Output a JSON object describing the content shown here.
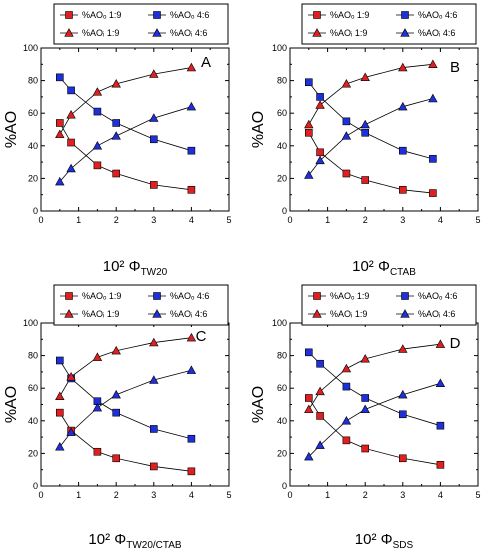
{
  "figure": {
    "ylabel": "%AO",
    "colors": {
      "red": "#e02020",
      "blue": "#1f2fd9",
      "line": "#000000"
    }
  },
  "chart_data": [
    {
      "type": "line",
      "letter": "A",
      "xlabel_main": "10² Φ",
      "xlabel_sub": "TW20",
      "ylabel": "%AO",
      "xlim": [
        0,
        5
      ],
      "ylim": [
        0,
        100
      ],
      "xticks": [
        "0",
        "1",
        "2",
        "3",
        "4",
        "5"
      ],
      "yticks": [
        "0",
        "20",
        "40",
        "60",
        "80",
        "100"
      ],
      "legend": [
        {
          "label": "%AOₒ 1:9",
          "marker": "square",
          "color": "#e02020"
        },
        {
          "label": "%AOₒ 4:6",
          "marker": "square",
          "color": "#1f2fd9"
        },
        {
          "label": "%AOᵢ 1:9",
          "marker": "triangle",
          "color": "#e02020"
        },
        {
          "label": "%AOᵢ 4:6",
          "marker": "triangle",
          "color": "#1f2fd9"
        }
      ],
      "series": [
        {
          "name": "%AOₒ 1:9",
          "marker": "square",
          "color": "#e02020",
          "x": [
            0.5,
            0.8,
            1.5,
            2.0,
            3.0,
            4.0
          ],
          "y": [
            54,
            42,
            28,
            23,
            16,
            13
          ]
        },
        {
          "name": "%AOₒ 4:6",
          "marker": "square",
          "color": "#1f2fd9",
          "x": [
            0.5,
            0.8,
            1.5,
            2.0,
            3.0,
            4.0
          ],
          "y": [
            82,
            74,
            61,
            54,
            44,
            37
          ]
        },
        {
          "name": "%AOᵢ 1:9",
          "marker": "triangle",
          "color": "#e02020",
          "x": [
            0.5,
            0.8,
            1.5,
            2.0,
            3.0,
            4.0
          ],
          "y": [
            47,
            59,
            73,
            78,
            84,
            88
          ]
        },
        {
          "name": "%AOᵢ 4:6",
          "marker": "triangle",
          "color": "#1f2fd9",
          "x": [
            0.5,
            0.8,
            1.5,
            2.0,
            3.0,
            4.0
          ],
          "y": [
            18,
            26,
            40,
            46,
            57,
            64
          ]
        }
      ]
    },
    {
      "type": "line",
      "letter": "B",
      "xlabel_main": "10² Φ",
      "xlabel_sub": "CTAB",
      "ylabel": "%AO",
      "xlim": [
        0,
        5
      ],
      "ylim": [
        0,
        100
      ],
      "xticks": [
        "0",
        "1",
        "2",
        "3",
        "4",
        "5"
      ],
      "yticks": [
        "0",
        "20",
        "40",
        "60",
        "80",
        "100"
      ],
      "legend": [
        {
          "label": "%AOₒ 1:9",
          "marker": "square",
          "color": "#e02020"
        },
        {
          "label": "%AOₒ 4:6",
          "marker": "square",
          "color": "#1f2fd9"
        },
        {
          "label": "%AOᵢ 1:9",
          "marker": "triangle",
          "color": "#e02020"
        },
        {
          "label": "%AOᵢ 4:6",
          "marker": "triangle",
          "color": "#1f2fd9"
        }
      ],
      "series": [
        {
          "name": "%AOₒ 1:9",
          "marker": "square",
          "color": "#e02020",
          "x": [
            0.5,
            0.8,
            1.5,
            2.0,
            3.0,
            3.8
          ],
          "y": [
            48,
            36,
            23,
            19,
            13,
            11
          ]
        },
        {
          "name": "%AOₒ 4:6",
          "marker": "square",
          "color": "#1f2fd9",
          "x": [
            0.5,
            0.8,
            1.5,
            2.0,
            3.0,
            3.8
          ],
          "y": [
            79,
            70,
            55,
            48,
            37,
            32
          ]
        },
        {
          "name": "%AOᵢ 1:9",
          "marker": "triangle",
          "color": "#e02020",
          "x": [
            0.5,
            0.8,
            1.5,
            2.0,
            3.0,
            3.8
          ],
          "y": [
            53,
            65,
            78,
            82,
            88,
            90
          ]
        },
        {
          "name": "%AOᵢ 4:6",
          "marker": "triangle",
          "color": "#1f2fd9",
          "x": [
            0.5,
            0.8,
            1.5,
            2.0,
            3.0,
            3.8
          ],
          "y": [
            22,
            31,
            46,
            53,
            64,
            69
          ]
        }
      ]
    },
    {
      "type": "line",
      "letter": "C",
      "xlabel_main": "10² Φ",
      "xlabel_sub": "TW20/CTAB",
      "ylabel": "%AO",
      "xlim": [
        0,
        5
      ],
      "ylim": [
        0,
        100
      ],
      "xticks": [
        "0",
        "1",
        "2",
        "3",
        "4",
        "5"
      ],
      "yticks": [
        "0",
        "20",
        "40",
        "60",
        "80",
        "100"
      ],
      "legend": [
        {
          "label": "%AOₒ 1:9",
          "marker": "square",
          "color": "#e02020"
        },
        {
          "label": "%AOₒ 4:6",
          "marker": "square",
          "color": "#1f2fd9"
        },
        {
          "label": "%AOᵢ 1:9",
          "marker": "triangle",
          "color": "#e02020"
        },
        {
          "label": "%AOᵢ 4:6",
          "marker": "triangle",
          "color": "#1f2fd9"
        }
      ],
      "series": [
        {
          "name": "%AOₒ 1:9",
          "marker": "square",
          "color": "#e02020",
          "x": [
            0.5,
            0.8,
            1.5,
            2.0,
            3.0,
            4.0
          ],
          "y": [
            45,
            34,
            21,
            17,
            12,
            9
          ]
        },
        {
          "name": "%AOₒ 4:6",
          "marker": "square",
          "color": "#1f2fd9",
          "x": [
            0.5,
            0.8,
            1.5,
            2.0,
            3.0,
            4.0
          ],
          "y": [
            77,
            66,
            52,
            45,
            35,
            29
          ]
        },
        {
          "name": "%AOᵢ 1:9",
          "marker": "triangle",
          "color": "#e02020",
          "x": [
            0.5,
            0.8,
            1.5,
            2.0,
            3.0,
            4.0
          ],
          "y": [
            55,
            67,
            79,
            83,
            88,
            91
          ]
        },
        {
          "name": "%AOᵢ 4:6",
          "marker": "triangle",
          "color": "#1f2fd9",
          "x": [
            0.5,
            0.8,
            1.5,
            2.0,
            3.0,
            4.0
          ],
          "y": [
            24,
            33,
            48,
            56,
            65,
            71
          ]
        }
      ]
    },
    {
      "type": "line",
      "letter": "D",
      "xlabel_main": "10² Φ",
      "xlabel_sub": "SDS",
      "ylabel": "%AO",
      "xlim": [
        0,
        5
      ],
      "ylim": [
        0,
        100
      ],
      "xticks": [
        "0",
        "1",
        "2",
        "3",
        "4",
        "5"
      ],
      "yticks": [
        "0",
        "20",
        "40",
        "60",
        "80",
        "100"
      ],
      "legend": [
        {
          "label": "%AOₒ 1:9",
          "marker": "square",
          "color": "#e02020"
        },
        {
          "label": "%AOₒ 4:6",
          "marker": "square",
          "color": "#1f2fd9"
        },
        {
          "label": "%AOᵢ 1:9",
          "marker": "triangle",
          "color": "#e02020"
        },
        {
          "label": "%AOᵢ 4:6",
          "marker": "triangle",
          "color": "#1f2fd9"
        }
      ],
      "series": [
        {
          "name": "%AOₒ 1:9",
          "marker": "square",
          "color": "#e02020",
          "x": [
            0.5,
            0.8,
            1.5,
            2.0,
            3.0,
            4.0
          ],
          "y": [
            54,
            43,
            28,
            23,
            17,
            13
          ]
        },
        {
          "name": "%AOₒ 4:6",
          "marker": "square",
          "color": "#1f2fd9",
          "x": [
            0.5,
            0.8,
            1.5,
            2.0,
            3.0,
            4.0
          ],
          "y": [
            82,
            75,
            61,
            54,
            44,
            37
          ]
        },
        {
          "name": "%AOᵢ 1:9",
          "marker": "triangle",
          "color": "#e02020",
          "x": [
            0.5,
            0.8,
            1.5,
            2.0,
            3.0,
            4.0
          ],
          "y": [
            47,
            58,
            72,
            78,
            84,
            87
          ]
        },
        {
          "name": "%AOᵢ 4:6",
          "marker": "triangle",
          "color": "#1f2fd9",
          "x": [
            0.5,
            0.8,
            1.5,
            2.0,
            3.0,
            4.0
          ],
          "y": [
            18,
            25,
            40,
            47,
            56,
            63
          ]
        }
      ]
    }
  ]
}
